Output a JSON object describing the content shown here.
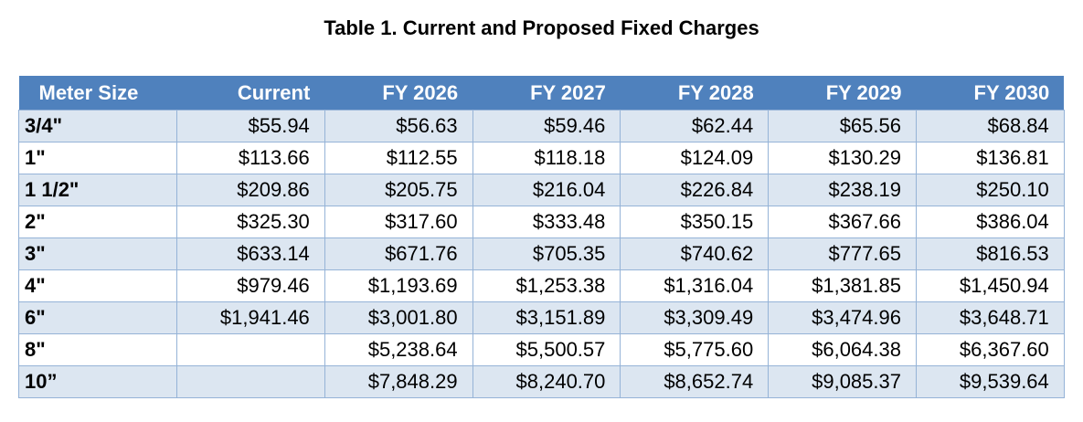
{
  "caption": "Table 1. Current and Proposed Fixed Charges",
  "colors": {
    "header_bg": "#4f81bd",
    "header_text": "#ffffff",
    "band_row": "#dce6f1",
    "plain_row": "#ffffff",
    "grid_line": "#95b3d7"
  },
  "table": {
    "columns": [
      "Meter Size",
      "Current",
      "FY 2026",
      "FY 2027",
      "FY 2028",
      "FY 2029",
      "FY 2030"
    ],
    "rows": [
      [
        "3/4\"",
        "$55.94",
        "$56.63",
        "$59.46",
        "$62.44",
        "$65.56",
        "$68.84"
      ],
      [
        "1\"",
        "$113.66",
        "$112.55",
        "$118.18",
        "$124.09",
        "$130.29",
        "$136.81"
      ],
      [
        "1 1/2\"",
        "$209.86",
        "$205.75",
        "$216.04",
        "$226.84",
        "$238.19",
        "$250.10"
      ],
      [
        "2\"",
        "$325.30",
        "$317.60",
        "$333.48",
        "$350.15",
        "$367.66",
        "$386.04"
      ],
      [
        "3\"",
        "$633.14",
        "$671.76",
        "$705.35",
        "$740.62",
        "$777.65",
        "$816.53"
      ],
      [
        "4\"",
        "$979.46",
        "$1,193.69",
        "$1,253.38",
        "$1,316.04",
        "$1,381.85",
        "$1,450.94"
      ],
      [
        "6\"",
        "$1,941.46",
        "$3,001.80",
        "$3,151.89",
        "$3,309.49",
        "$3,474.96",
        "$3,648.71"
      ],
      [
        "8\"",
        "",
        "$5,238.64",
        "$5,500.57",
        "$5,775.60",
        "$6,064.38",
        "$6,367.60"
      ],
      [
        "10”",
        "",
        "$7,848.29",
        "$8,240.70",
        "$8,652.74",
        "$9,085.37",
        "$9,539.64"
      ]
    ]
  }
}
